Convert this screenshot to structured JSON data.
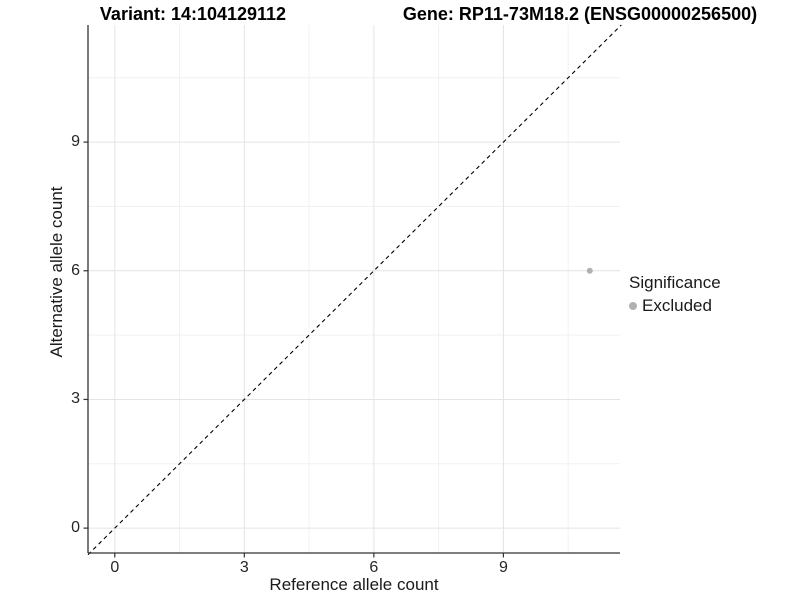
{
  "chart_data": {
    "type": "scatter",
    "title_left": "Variant: 14:104129112",
    "title_right": "Gene: RP11-73M18.2 (ENSG00000256500)",
    "xlabel": "Reference allele count",
    "ylabel": "Alternative allele count",
    "x_ticks": [
      0,
      3,
      6,
      9
    ],
    "y_ticks": [
      0,
      3,
      6,
      9
    ],
    "x_minor": [
      1.5,
      4.5,
      7.5,
      10.5
    ],
    "y_minor": [
      1.5,
      4.5,
      7.5,
      10.5
    ],
    "xlim": [
      -0.62,
      11.7
    ],
    "ylim": [
      -0.58,
      11.73
    ],
    "identity_line": {
      "style": "dashed",
      "from": [
        -0.62,
        -0.62
      ],
      "to": [
        11.73,
        11.73
      ]
    },
    "points": [
      {
        "x": 11,
        "y": 6,
        "series": "Excluded"
      }
    ],
    "legend": {
      "title": "Significance",
      "position": "right",
      "items": [
        {
          "label": "Excluded",
          "color": "#b1b1b1"
        }
      ]
    },
    "colors": {
      "point": "#b1b1b1",
      "grid_major": "#e4e4e4",
      "grid_minor": "#f1f1f1",
      "axis_line": "#333333",
      "identity_line": "#000000"
    },
    "grid": true
  }
}
